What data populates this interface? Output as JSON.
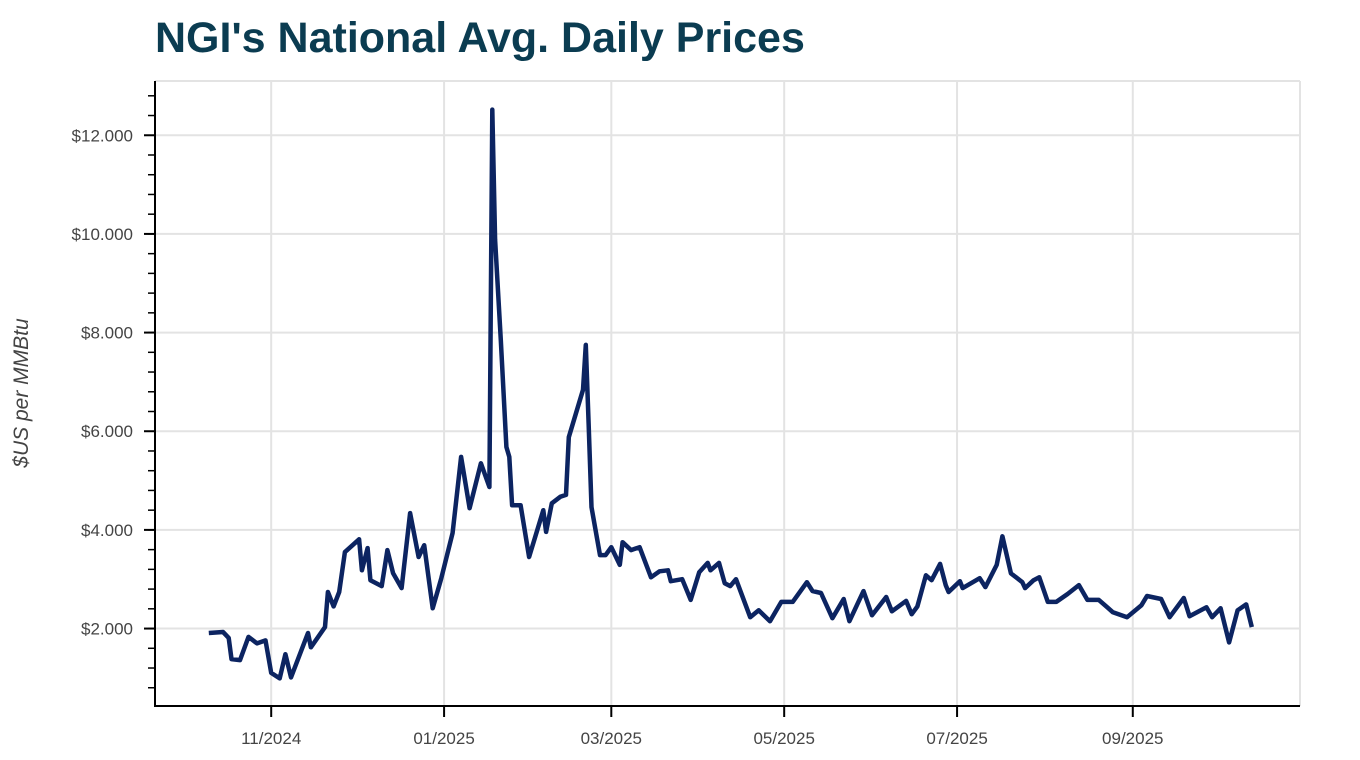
{
  "chart_data": {
    "type": "line",
    "title": "NGI's National Avg. Daily Prices",
    "xlabel": "",
    "ylabel": "$US per MMBtu",
    "xlim": [
      "2024-09-21",
      "2025-10-30"
    ],
    "ylim": [
      0.43,
      13.1
    ],
    "grid": true,
    "line_color": "#0c2461",
    "title_color": "#0b3c51",
    "x_ticks": [
      {
        "date": "2024-11-01",
        "label": "11/2024"
      },
      {
        "date": "2025-01-01",
        "label": "01/2025"
      },
      {
        "date": "2025-03-01",
        "label": "03/2025"
      },
      {
        "date": "2025-05-01",
        "label": "05/2025"
      },
      {
        "date": "2025-07-01",
        "label": "07/2025"
      },
      {
        "date": "2025-09-01",
        "label": "09/2025"
      }
    ],
    "y_ticks": [
      {
        "value": 2,
        "label": "$2.000"
      },
      {
        "value": 4,
        "label": "$4.000"
      },
      {
        "value": 6,
        "label": "$6.000"
      },
      {
        "value": 8,
        "label": "$8.000"
      },
      {
        "value": 10,
        "label": "$10.000"
      },
      {
        "value": 12,
        "label": "$12.000"
      }
    ],
    "y_minor_step": 0.4,
    "series": [
      {
        "x": [
          "2024-10-10",
          "2024-10-15",
          "2024-10-17",
          "2024-10-18",
          "2024-10-21",
          "2024-10-24",
          "2024-10-27",
          "2024-10-30",
          "2024-11-01",
          "2024-11-04",
          "2024-11-06",
          "2024-11-08",
          "2024-11-14",
          "2024-11-15",
          "2024-11-20",
          "2024-11-21",
          "2024-11-23",
          "2024-11-25",
          "2024-11-27",
          "2024-12-02",
          "2024-12-03",
          "2024-12-05",
          "2024-12-06",
          "2024-12-10",
          "2024-12-12",
          "2024-12-14",
          "2024-12-17",
          "2024-12-20",
          "2024-12-23",
          "2024-12-25",
          "2024-12-28",
          "2024-12-31",
          "2025-01-04",
          "2025-01-07",
          "2025-01-10",
          "2025-01-14",
          "2025-01-17",
          "2025-01-18",
          "2025-01-19",
          "2025-01-21",
          "2025-01-23",
          "2025-01-24",
          "2025-01-25",
          "2025-01-28",
          "2025-01-31",
          "2025-02-05",
          "2025-02-06",
          "2025-02-08",
          "2025-02-11",
          "2025-02-13",
          "2025-02-14",
          "2025-02-19",
          "2025-02-20",
          "2025-02-21",
          "2025-02-22",
          "2025-02-25",
          "2025-02-27",
          "2025-03-01",
          "2025-03-04",
          "2025-03-05",
          "2025-03-08",
          "2025-03-11",
          "2025-03-15",
          "2025-03-18",
          "2025-03-21",
          "2025-03-22",
          "2025-03-26",
          "2025-03-29",
          "2025-04-01",
          "2025-04-04",
          "2025-04-05",
          "2025-04-08",
          "2025-04-10",
          "2025-04-12",
          "2025-04-14",
          "2025-04-19",
          "2025-04-22",
          "2025-04-26",
          "2025-04-30",
          "2025-05-04",
          "2025-05-09",
          "2025-05-11",
          "2025-05-14",
          "2025-05-18",
          "2025-05-22",
          "2025-05-24",
          "2025-05-29",
          "2025-06-01",
          "2025-06-06",
          "2025-06-08",
          "2025-06-13",
          "2025-06-15",
          "2025-06-17",
          "2025-06-20",
          "2025-06-22",
          "2025-06-25",
          "2025-06-27",
          "2025-06-28",
          "2025-07-02",
          "2025-07-03",
          "2025-07-09",
          "2025-07-11",
          "2025-07-15",
          "2025-07-17",
          "2025-07-20",
          "2025-07-24",
          "2025-07-25",
          "2025-07-28",
          "2025-07-30",
          "2025-08-02",
          "2025-08-05",
          "2025-08-09",
          "2025-08-13",
          "2025-08-16",
          "2025-08-20",
          "2025-08-23",
          "2025-08-25",
          "2025-08-30",
          "2025-09-04",
          "2025-09-06",
          "2025-09-11",
          "2025-09-14",
          "2025-09-19",
          "2025-09-21",
          "2025-09-27",
          "2025-09-29",
          "2025-10-02",
          "2025-10-05",
          "2025-10-08",
          "2025-10-11",
          "2025-10-13"
        ],
        "values": [
          1.91,
          1.93,
          1.81,
          1.38,
          1.36,
          1.83,
          1.7,
          1.76,
          1.1,
          0.99,
          1.48,
          1.01,
          1.91,
          1.62,
          2.03,
          2.74,
          2.45,
          2.74,
          3.55,
          3.81,
          3.18,
          3.63,
          2.98,
          2.86,
          3.59,
          3.12,
          2.82,
          4.34,
          3.45,
          3.69,
          2.41,
          3.02,
          3.94,
          5.48,
          4.44,
          5.35,
          4.87,
          12.52,
          9.88,
          7.85,
          5.68,
          5.48,
          4.5,
          4.5,
          3.45,
          4.4,
          3.96,
          4.54,
          4.67,
          4.71,
          5.88,
          6.84,
          7.75,
          6.17,
          4.46,
          3.49,
          3.49,
          3.65,
          3.29,
          3.75,
          3.59,
          3.65,
          3.04,
          3.16,
          3.18,
          2.96,
          3.0,
          2.58,
          3.14,
          3.33,
          3.18,
          3.33,
          2.92,
          2.86,
          3.0,
          2.23,
          2.37,
          2.15,
          2.54,
          2.54,
          2.94,
          2.76,
          2.72,
          2.21,
          2.6,
          2.15,
          2.76,
          2.27,
          2.64,
          2.35,
          2.56,
          2.29,
          2.45,
          3.08,
          2.98,
          3.31,
          2.88,
          2.74,
          2.96,
          2.82,
          3.02,
          2.84,
          3.29,
          3.87,
          3.12,
          2.94,
          2.82,
          2.98,
          3.04,
          2.54,
          2.54,
          2.7,
          2.88,
          2.58,
          2.58,
          2.43,
          2.33,
          2.23,
          2.47,
          2.66,
          2.6,
          2.23,
          2.62,
          2.25,
          2.43,
          2.23,
          2.41,
          1.72,
          2.37,
          2.49,
          2.03
        ]
      }
    ]
  }
}
